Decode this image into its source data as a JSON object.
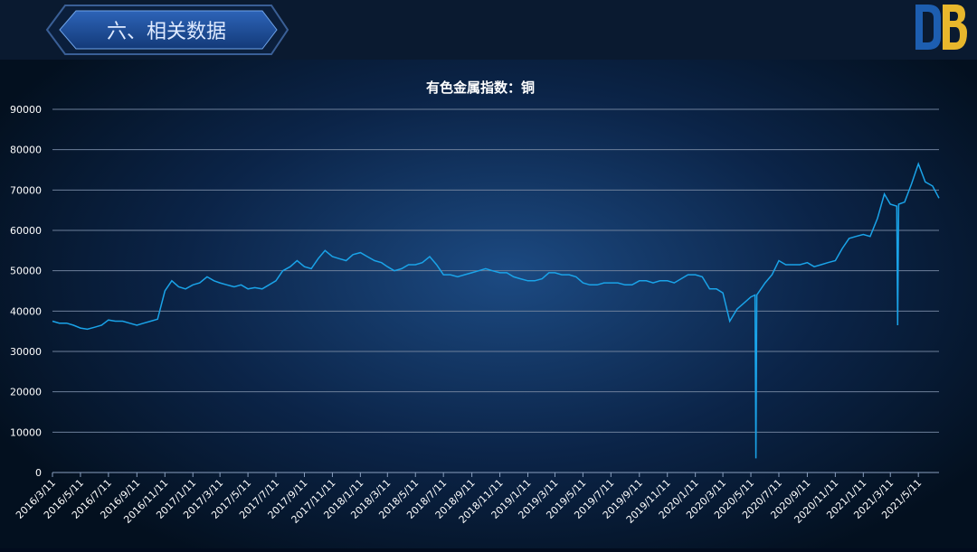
{
  "header": {
    "title": "六、相关数据"
  },
  "chart_data": {
    "type": "line",
    "title": "有色金属指数：铜",
    "x": [
      "2016/3/11",
      "2016/3/26",
      "2016/4/11",
      "2016/4/26",
      "2016/5/11",
      "2016/5/26",
      "2016/6/11",
      "2016/6/26",
      "2016/7/11",
      "2016/7/26",
      "2016/8/11",
      "2016/8/26",
      "2016/9/11",
      "2016/9/26",
      "2016/10/11",
      "2016/10/26",
      "2016/11/11",
      "2016/11/26",
      "2016/12/11",
      "2016/12/26",
      "2017/1/11",
      "2017/1/26",
      "2017/2/11",
      "2017/2/26",
      "2017/3/11",
      "2017/3/26",
      "2017/4/11",
      "2017/4/26",
      "2017/5/11",
      "2017/5/26",
      "2017/6/11",
      "2017/6/26",
      "2017/7/11",
      "2017/7/26",
      "2017/8/11",
      "2017/8/26",
      "2017/9/11",
      "2017/9/26",
      "2017/10/11",
      "2017/10/26",
      "2017/11/11",
      "2017/11/26",
      "2017/12/11",
      "2017/12/26",
      "2018/1/11",
      "2018/1/26",
      "2018/2/11",
      "2018/2/26",
      "2018/3/11",
      "2018/3/26",
      "2018/4/11",
      "2018/4/26",
      "2018/5/11",
      "2018/5/26",
      "2018/6/11",
      "2018/6/26",
      "2018/7/11",
      "2018/7/26",
      "2018/8/11",
      "2018/8/26",
      "2018/9/11",
      "2018/9/26",
      "2018/10/11",
      "2018/10/26",
      "2018/11/11",
      "2018/11/26",
      "2018/12/11",
      "2018/12/26",
      "2019/1/11",
      "2019/1/26",
      "2019/2/11",
      "2019/2/26",
      "2019/3/11",
      "2019/3/26",
      "2019/4/11",
      "2019/4/26",
      "2019/5/11",
      "2019/5/26",
      "2019/6/11",
      "2019/6/26",
      "2019/7/11",
      "2019/7/26",
      "2019/8/11",
      "2019/8/26",
      "2019/9/11",
      "2019/9/26",
      "2019/10/11",
      "2019/10/26",
      "2019/11/11",
      "2019/11/26",
      "2019/12/11",
      "2019/12/26",
      "2020/1/11",
      "2020/1/26",
      "2020/2/11",
      "2020/2/26",
      "2020/3/11",
      "2020/3/26",
      "2020/4/11",
      "2020/4/26",
      "2020/5/11",
      "2020/5/20",
      "2020/5/22",
      "2020/5/24",
      "2020/6/11",
      "2020/6/26",
      "2020/7/11",
      "2020/7/26",
      "2020/8/11",
      "2020/8/26",
      "2020/9/11",
      "2020/9/26",
      "2020/10/11",
      "2020/10/26",
      "2020/11/11",
      "2020/11/26",
      "2020/12/11",
      "2020/12/26",
      "2021/1/11",
      "2021/1/26",
      "2021/2/11",
      "2021/2/26",
      "2021/3/11",
      "2021/3/25",
      "2021/3/27",
      "2021/3/29",
      "2021/4/11",
      "2021/4/26",
      "2021/5/11",
      "2021/5/26",
      "2021/6/11",
      "2021/6/25"
    ],
    "series": [
      {
        "name": "有色金属指数：铜",
        "color": "#1aa3e8",
        "values": [
          37500,
          37000,
          37000,
          36500,
          35800,
          35500,
          36000,
          36500,
          37800,
          37500,
          37500,
          37000,
          36500,
          37000,
          37500,
          38000,
          45000,
          47500,
          46000,
          45500,
          46500,
          47000,
          48500,
          47500,
          47000,
          46500,
          46000,
          46500,
          45500,
          45800,
          45500,
          46500,
          47500,
          50000,
          51000,
          52500,
          51000,
          50500,
          53000,
          55000,
          53500,
          53000,
          52500,
          54000,
          54500,
          53500,
          52500,
          52000,
          51000,
          50000,
          50500,
          51500,
          51500,
          52000,
          53500,
          51500,
          49000,
          49000,
          48500,
          49000,
          49500,
          50000,
          50500,
          50000,
          49500,
          49500,
          48500,
          48000,
          47500,
          47500,
          48000,
          49500,
          49500,
          49000,
          49000,
          48500,
          47000,
          46500,
          46500,
          47000,
          47000,
          47000,
          46500,
          46500,
          47500,
          47500,
          47000,
          47500,
          47500,
          47000,
          48000,
          49000,
          49000,
          48500,
          45500,
          45500,
          44500,
          37500,
          40500,
          42000,
          43500,
          44000,
          3500,
          44000,
          47000,
          49000,
          52500,
          51500,
          51500,
          51500,
          52000,
          51000,
          51500,
          52000,
          52500,
          55500,
          58000,
          58500,
          59000,
          58500,
          63000,
          69000,
          66500,
          66000,
          36500,
          66500,
          67000,
          71500,
          76500,
          72000,
          71000,
          68000
        ]
      }
    ],
    "ylim": [
      0,
      90000
    ],
    "yticks": [
      0,
      10000,
      20000,
      30000,
      40000,
      50000,
      60000,
      70000,
      80000,
      90000
    ],
    "xlim": [
      "2016/3/11",
      "2021/6/25"
    ],
    "xticks": [
      "2016/3/11",
      "2016/5/11",
      "2016/7/11",
      "2016/9/11",
      "2016/11/11",
      "2017/1/11",
      "2017/3/11",
      "2017/5/11",
      "2017/7/11",
      "2017/9/11",
      "2017/11/11",
      "2018/1/11",
      "2018/3/11",
      "2018/5/11",
      "2018/7/11",
      "2018/9/11",
      "2018/11/11",
      "2019/1/11",
      "2019/3/11",
      "2019/5/11",
      "2019/7/11",
      "2019/9/11",
      "2019/11/11",
      "2020/1/11",
      "2020/3/11",
      "2020/5/11",
      "2020/7/11",
      "2020/9/11",
      "2020/11/11",
      "2021/1/11",
      "2021/3/11",
      "2021/5/11"
    ],
    "grid": true
  }
}
